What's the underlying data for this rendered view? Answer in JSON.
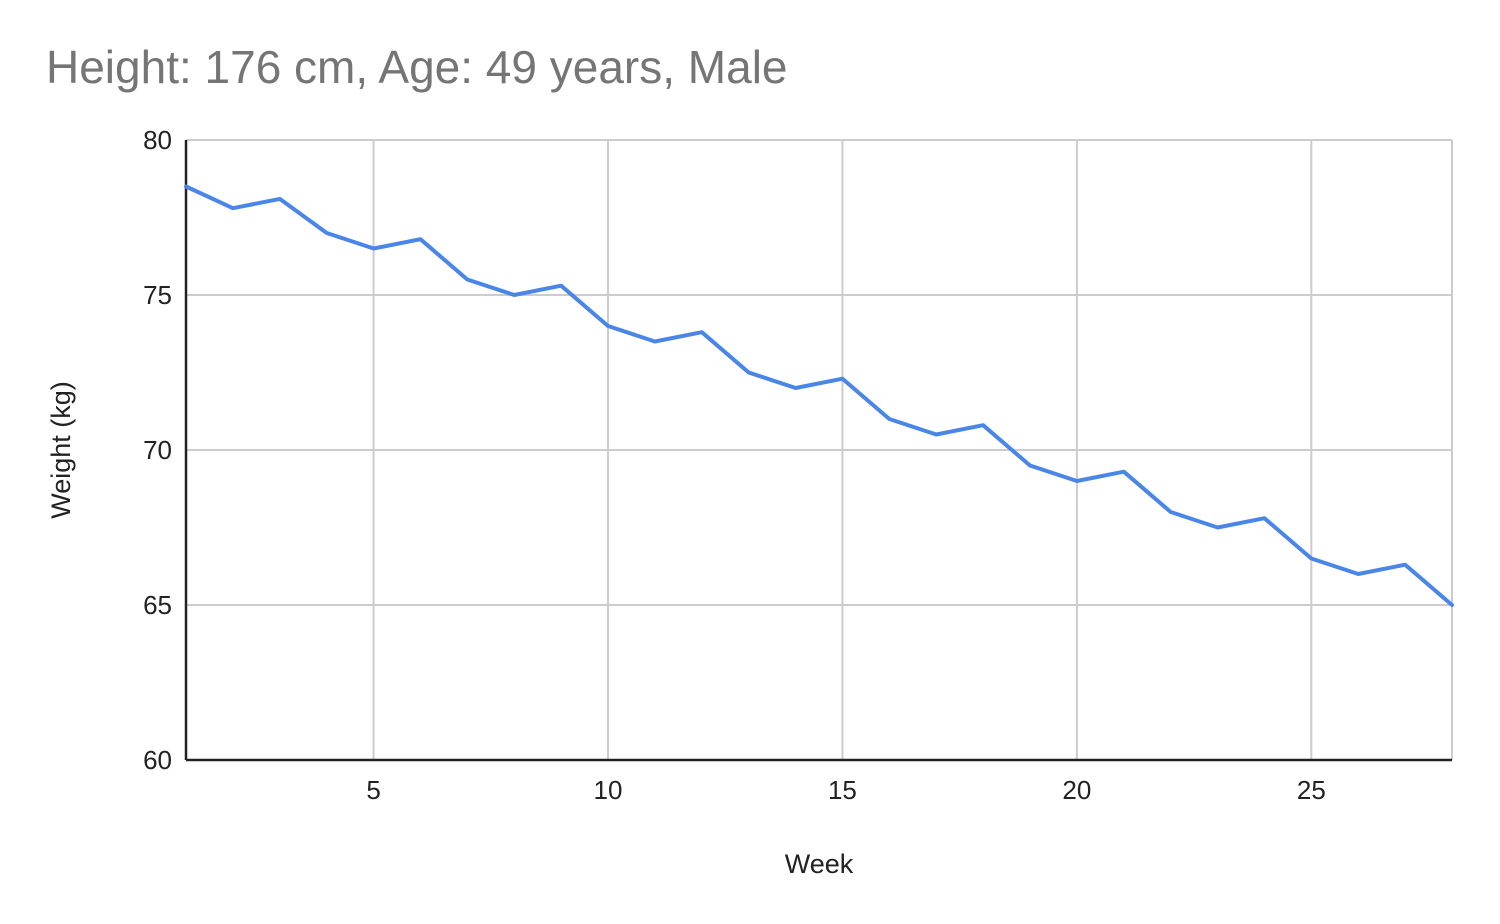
{
  "chart_data": {
    "type": "line",
    "title": "Height: 176 cm, Age: 49 years, Male",
    "xlabel": "Week",
    "ylabel": "Weight (kg)",
    "xlim": [
      1,
      28
    ],
    "ylim": [
      60,
      80
    ],
    "x_ticks": [
      5,
      10,
      15,
      20,
      25
    ],
    "y_ticks": [
      60,
      65,
      70,
      75,
      80
    ],
    "grid": true,
    "legend": "none",
    "line_color": "#4a86e8",
    "series": [
      {
        "x": [
          1,
          2,
          3,
          4,
          5,
          6,
          7,
          8,
          9,
          10,
          11,
          12,
          13,
          14,
          15,
          16,
          17,
          18,
          19,
          20,
          21,
          22,
          23,
          24,
          25,
          26,
          27,
          28
        ],
        "values": [
          78.5,
          77.8,
          78.1,
          77.0,
          76.5,
          76.8,
          75.5,
          75.0,
          75.3,
          74.0,
          73.5,
          73.8,
          72.5,
          72.0,
          72.3,
          71.0,
          70.5,
          70.8,
          69.5,
          69.0,
          69.3,
          68.0,
          67.5,
          67.8,
          66.5,
          66.0,
          66.3,
          65.0
        ]
      }
    ]
  }
}
